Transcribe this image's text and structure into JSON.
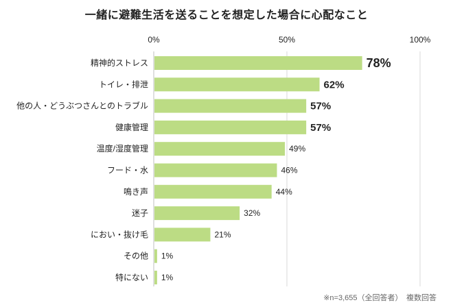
{
  "title": "一緒に避難生活を送ることを想定した場合に心配なこと",
  "footnote": "※n=3,655（全回答者）　複数回答",
  "colors": {
    "bar": "#bcdc84",
    "axis": "#bfbfbf",
    "grid": "#d9d9d9",
    "text": "#222222"
  },
  "chart_data": {
    "type": "bar",
    "orientation": "horizontal",
    "title": "一緒に避難生活を送ることを想定した場合に心配なこと",
    "categories": [
      "精神的ストレス",
      "トイレ・排泄",
      "他の人・どうぶつさんとのトラブル",
      "健康管理",
      "温度/湿度管理",
      "フード・水",
      "鳴き声",
      "迷子",
      "におい・抜け毛",
      "その他",
      "特にない"
    ],
    "values": [
      78,
      62,
      57,
      57,
      49,
      46,
      44,
      32,
      21,
      1,
      1
    ],
    "value_labels": [
      "78%",
      "62%",
      "57%",
      "57%",
      "49%",
      "46%",
      "44%",
      "32%",
      "21%",
      "1%",
      "1%"
    ],
    "emphasized": [
      true,
      true,
      true,
      true,
      false,
      false,
      false,
      false,
      false,
      false,
      false
    ],
    "xticks": [
      "0%",
      "50%",
      "100%"
    ],
    "xtick_values": [
      0,
      50,
      100
    ],
    "xlim": [
      0,
      100
    ],
    "grid": true,
    "legend": false
  }
}
